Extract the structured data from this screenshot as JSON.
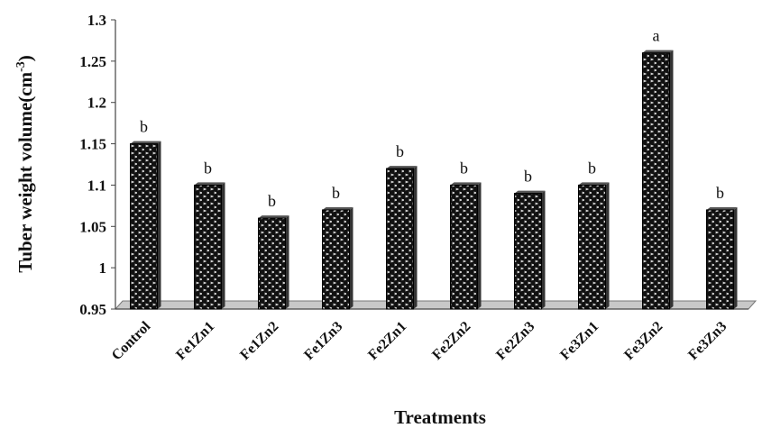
{
  "chart_data": {
    "type": "bar",
    "title": "",
    "xlabel": "Treatments",
    "ylabel_main": "Tuber weight volume(cm",
    "ylabel_sup": "-3",
    "ylabel_close": ")",
    "categories": [
      "Control",
      "Fe1Zn1",
      "Fe1Zn2",
      "Fe1Zn3",
      "Fe2Zn1",
      "Fe2Zn2",
      "Fe2Zn3",
      "Fe3Zn1",
      "Fe3Zn2",
      "Fe3Zn3"
    ],
    "values": [
      1.15,
      1.1,
      1.06,
      1.07,
      1.12,
      1.1,
      1.09,
      1.1,
      1.26,
      1.07
    ],
    "letters": [
      "b",
      "b",
      "b",
      "b",
      "b",
      "b",
      "b",
      "b",
      "a",
      "b"
    ],
    "ylim": [
      0.95,
      1.3
    ],
    "yticks": [
      "0.95",
      "1",
      "1.05",
      "1.1",
      "1.15",
      "1.2",
      "1.25",
      "1.3"
    ],
    "grid": false,
    "legend": "none",
    "colors": {
      "bar": "#111111",
      "pattern": "#ffffff",
      "floor": "#c8c8c8"
    }
  }
}
